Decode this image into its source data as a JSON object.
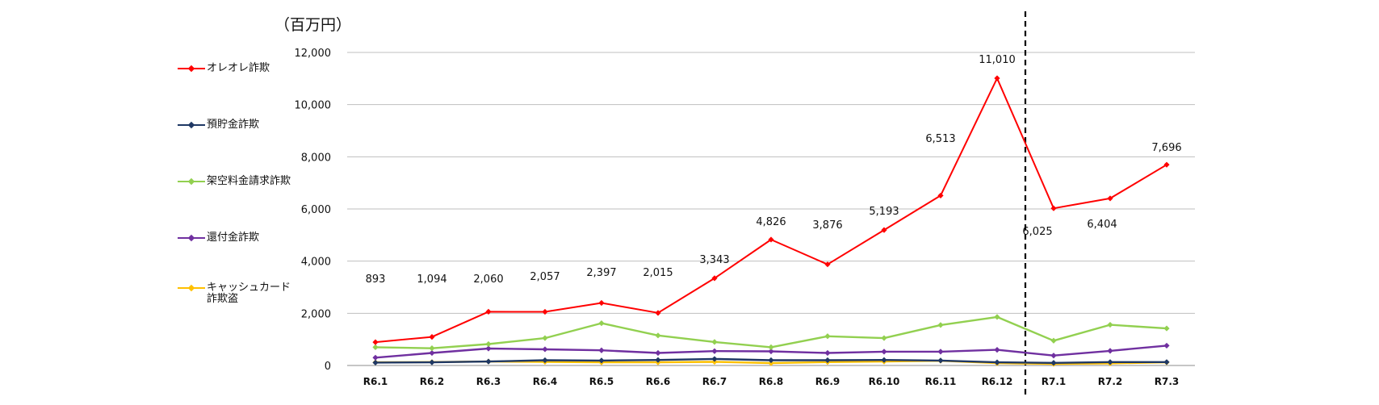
{
  "unit_label": "（百万円）",
  "chart_data": {
    "type": "line",
    "categories": [
      "R6.1",
      "R6.2",
      "R6.3",
      "R6.4",
      "R6.5",
      "R6.6",
      "R6.7",
      "R6.8",
      "R6.9",
      "R6.10",
      "R6.11",
      "R6.12",
      "R7.1",
      "R7.2",
      "R7.3"
    ],
    "ylim": [
      0,
      12000
    ],
    "yticks": [
      0,
      2000,
      4000,
      6000,
      8000,
      10000,
      12000
    ],
    "ytick_labels": [
      "0",
      "2,000",
      "4,000",
      "6,000",
      "8,000",
      "10,000",
      "12,000"
    ],
    "grid": true,
    "legend_position": "left",
    "divider_after_category": "R6.12",
    "series": [
      {
        "name": "オレオレ詐欺",
        "color": "#ff0000",
        "values": [
          893,
          1094,
          2060,
          2057,
          2397,
          2015,
          3343,
          4826,
          3876,
          5193,
          6513,
          11010,
          6025,
          6404,
          7696
        ],
        "labels": [
          "893",
          "1,094",
          "2,060",
          "2,057",
          "2,397",
          "2,015",
          "3,343",
          "4,826",
          "3,876",
          "5,193",
          "6,513",
          "11,010",
          "6,025",
          "6,404",
          "7,696"
        ]
      },
      {
        "name": "預貯金詐欺",
        "color": "#1f3864",
        "values": [
          110,
          120,
          150,
          200,
          190,
          210,
          250,
          200,
          200,
          210,
          190,
          120,
          100,
          130,
          130
        ]
      },
      {
        "name": "架空料金請求詐欺",
        "color": "#92d050",
        "values": [
          700,
          660,
          820,
          1050,
          1620,
          1150,
          900,
          700,
          1120,
          1050,
          1550,
          1860,
          950,
          1560,
          1420
        ]
      },
      {
        "name": "還付金詐欺",
        "color": "#7030a0",
        "values": [
          300,
          480,
          650,
          620,
          580,
          480,
          550,
          540,
          480,
          530,
          530,
          600,
          380,
          560,
          760
        ]
      },
      {
        "name": "キャッシュカード\n詐欺盗",
        "color": "#ffc000",
        "values": [
          120,
          130,
          150,
          140,
          120,
          120,
          140,
          90,
          130,
          150,
          180,
          90,
          60,
          80,
          120
        ]
      }
    ]
  }
}
